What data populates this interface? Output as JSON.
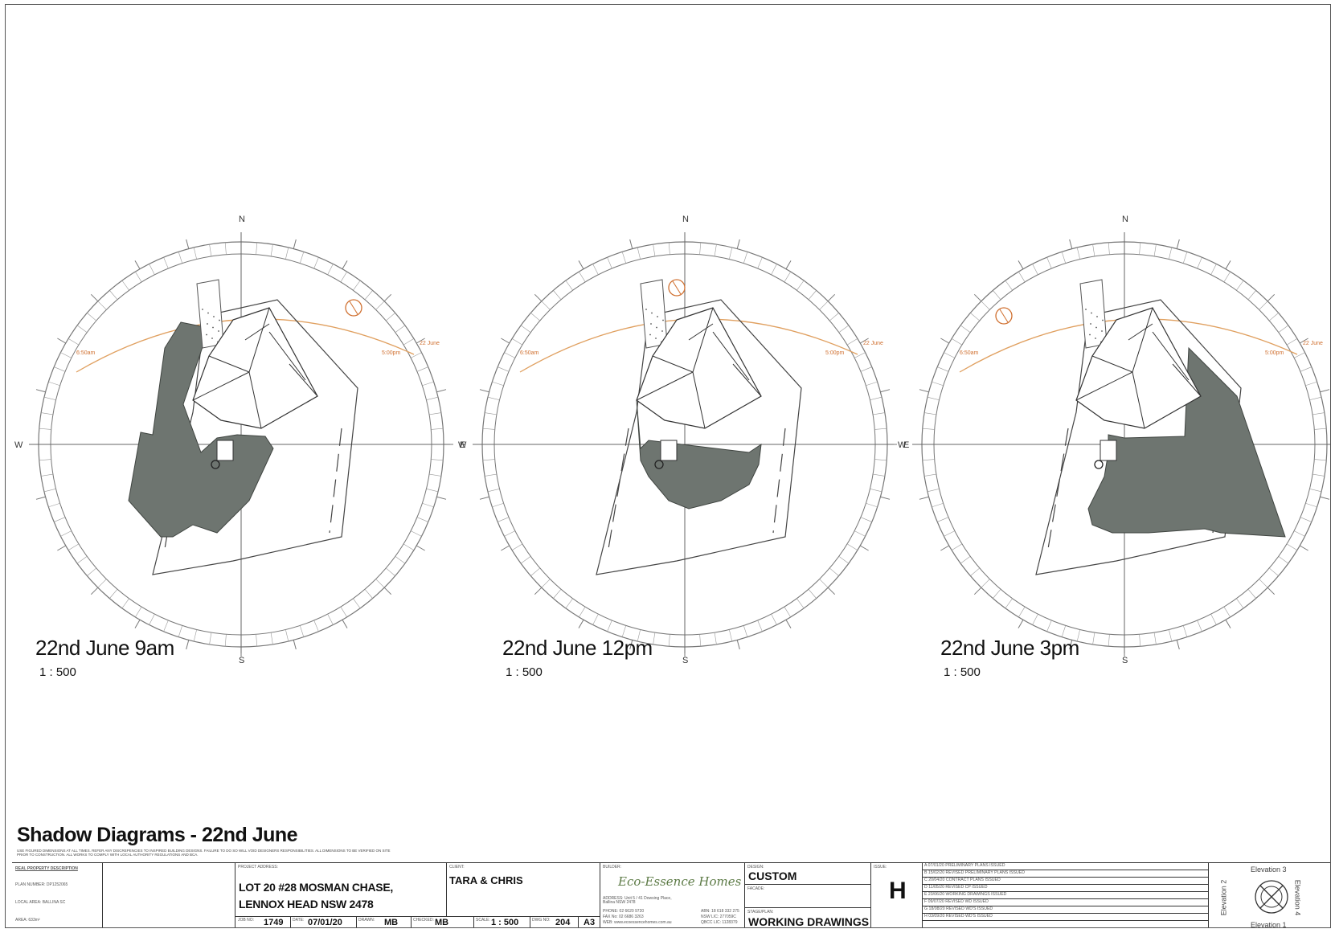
{
  "views": [
    {
      "title": "22nd June 9am",
      "scale": "1 : 500"
    },
    {
      "title": "22nd June 12pm",
      "scale": "1 : 500"
    },
    {
      "title": "22nd June 3pm",
      "scale": "1 : 500"
    }
  ],
  "compass": {
    "north": "N",
    "south": "S",
    "east": "E",
    "west": "W"
  },
  "sun_path": {
    "label": "22 June",
    "sunrise": "6:50am",
    "sunset": "5:00pm"
  },
  "sheet_title": "Shadow Diagrams - 22nd June",
  "disclaimer": "USE FIGURED DIMENSIONS AT ALL TIMES. REFER ANY DISCREPENCIES TO INSPIRED BUILDING DESIGNS. FAILURE TO DO SO WILL VOID DESIGNERS RESPONSIBILITIES. ALL DIMENSIONS TO BE VERIFIED ON SITE PRIOR TO CONSTRUCTION. ALL WORKS TO COMPLY WITH LOCAL AUTHORITY REGULATIONS AND BCA.",
  "title_block": {
    "property_heading": "REAL PROPERTY DESCRIPTION",
    "plan_number": "PLAN NUMBER:  DP1252065",
    "local_area": "LOCAL AREA:  BALLINA SC",
    "area": "AREA:  633m²",
    "project_address_label": "PROJECT ADDRESS:",
    "address_line1": "LOT 20 #28 MOSMAN CHASE,",
    "address_line2": "LENNOX HEAD NSW 2478",
    "job_label": "JOB NO:",
    "job_no": "1749",
    "date_label": "DATE:",
    "date": "07/01/20",
    "drawn_label": "DRAWN:",
    "drawn": "MB",
    "checked_label": "CHECKED:",
    "checked": "MB",
    "client_label": "CLIENT:",
    "client": "TARA & CHRIS",
    "scale_label": "SCALE:",
    "scale": "1 : 500",
    "dwg_label": "DWG NO:",
    "dwg_no": "204",
    "paper": "A3",
    "builder_label": "BUILDER:",
    "builder_logo": "Eco-Essence Homes",
    "builder_address": "ADDRESS: Unit 5 / 41 Dowsing Place, Ballina NSW 2478",
    "builder_phone": "PHONE: 02 6620 9720",
    "builder_fax": "FAX No: 02 6686 3263",
    "builder_web": "WEB: www.ecoessencehomes.com.au",
    "builder_abn": "ABN: 18 618 332 275",
    "builder_lic": "NSW LIC: 277059C",
    "builder_qbcc": "QBCC LIC: 1128379",
    "design_label": "DESIGN:",
    "design": "CUSTOM",
    "facade_label": "FACADE:",
    "stage_label": "STAGE/PLAN:",
    "stage": "WORKING DRAWINGS",
    "issue_label": "ISSUE:",
    "issue": "H",
    "revisions": [
      "A  07/01/20 PRELIMINARY PLANS ISSUED",
      "B  15/02/20 REVISED PRELIMINARY PLANS ISSUED",
      "C  20/04/20 CONTRACT PLANS ISSUED",
      "D  11/05/20 REVISED CP ISSUED",
      "E  23/06/20 WORKING DRAWINGS ISSUED",
      "F  09/07/20 REVISED WD ISSUED",
      "G  18/08/20 REVISED WD'S ISSUED",
      "H  03/09/20 REVISED WD'S ISSUED"
    ],
    "elevation_top": "Elevation 3",
    "elevation_bottom": "Elevation 1",
    "elevation_left": "Elevation 2",
    "elevation_right": "Elevation 4"
  }
}
